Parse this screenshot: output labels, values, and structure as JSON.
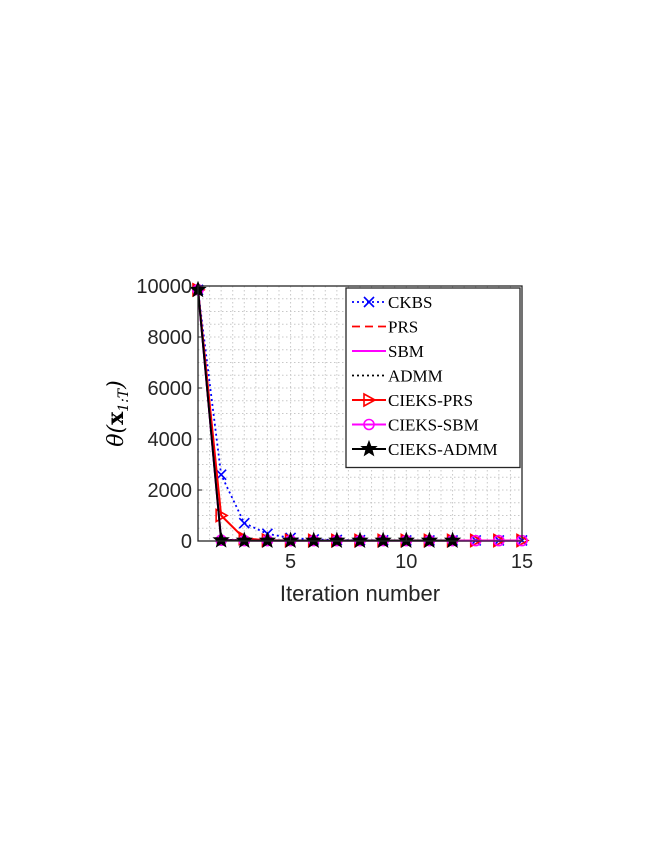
{
  "chart_data": {
    "type": "line",
    "title": "",
    "xlabel": "Iteration number",
    "ylabel": "θ(x1:T)",
    "xlim": [
      1,
      15
    ],
    "ylim": [
      0,
      10000
    ],
    "xticks": [
      5,
      10,
      15
    ],
    "yticks": [
      0,
      2000,
      4000,
      6000,
      8000,
      10000
    ],
    "grid": "minor-dotted",
    "legend_position": "top-right",
    "series": [
      {
        "name": "CKBS",
        "color": "#0000ff",
        "style": "dotted",
        "marker": "x",
        "x": [
          1,
          2,
          3,
          4,
          5,
          6,
          7,
          8,
          9,
          10,
          11,
          12,
          13,
          14,
          15
        ],
        "y": [
          9850,
          2600,
          700,
          280,
          120,
          60,
          40,
          30,
          25,
          20,
          20,
          20,
          20,
          20,
          20
        ]
      },
      {
        "name": "PRS",
        "color": "#ff0000",
        "style": "dashed",
        "marker": "none",
        "x": [
          1,
          2,
          3,
          4,
          5,
          6,
          7,
          8,
          9,
          10,
          11,
          12,
          13,
          14,
          15
        ],
        "y": [
          9850,
          50,
          20,
          15,
          15,
          15,
          15,
          15,
          15,
          15,
          15,
          15,
          15,
          15,
          15
        ]
      },
      {
        "name": "SBM",
        "color": "#ff00ff",
        "style": "solid",
        "marker": "none",
        "x": [
          1,
          2,
          3,
          4,
          5,
          6,
          7,
          8,
          9,
          10,
          11,
          12,
          13,
          14,
          15
        ],
        "y": [
          9850,
          50,
          20,
          15,
          15,
          15,
          15,
          15,
          15,
          15,
          15,
          15,
          15,
          15,
          15
        ]
      },
      {
        "name": "ADMM",
        "color": "#000000",
        "style": "dotted",
        "marker": "none",
        "x": [
          1,
          2,
          3,
          4,
          5,
          6,
          7,
          8,
          9,
          10,
          11,
          12,
          13,
          14,
          15
        ],
        "y": [
          9850,
          50,
          20,
          15,
          15,
          15,
          15,
          15,
          15,
          15,
          15,
          15,
          15,
          15,
          15
        ]
      },
      {
        "name": "CIEKS-PRS",
        "color": "#ff0000",
        "style": "solid",
        "marker": "triangle-right",
        "x": [
          1,
          2,
          3,
          4,
          5,
          6,
          7,
          8,
          9,
          10,
          11,
          12,
          13,
          14,
          15
        ],
        "y": [
          9850,
          1000,
          100,
          30,
          20,
          20,
          20,
          20,
          20,
          20,
          20,
          20,
          20,
          20,
          20
        ]
      },
      {
        "name": "CIEKS-SBM",
        "color": "#ff00ff",
        "style": "solid",
        "marker": "circle",
        "x": [
          1,
          2,
          3,
          4,
          5,
          6,
          7,
          8,
          9,
          10,
          11,
          12,
          13,
          14,
          15
        ],
        "y": [
          9850,
          30,
          15,
          15,
          15,
          15,
          15,
          15,
          15,
          15,
          15,
          15,
          15,
          15,
          15
        ]
      },
      {
        "name": "CIEKS-ADMM",
        "color": "#000000",
        "style": "solid",
        "marker": "star",
        "x": [
          1,
          2,
          3,
          4,
          5,
          6,
          7,
          8,
          9,
          10,
          11,
          12
        ],
        "y": [
          9850,
          30,
          15,
          15,
          15,
          15,
          15,
          15,
          15,
          15,
          15,
          15
        ]
      }
    ]
  }
}
